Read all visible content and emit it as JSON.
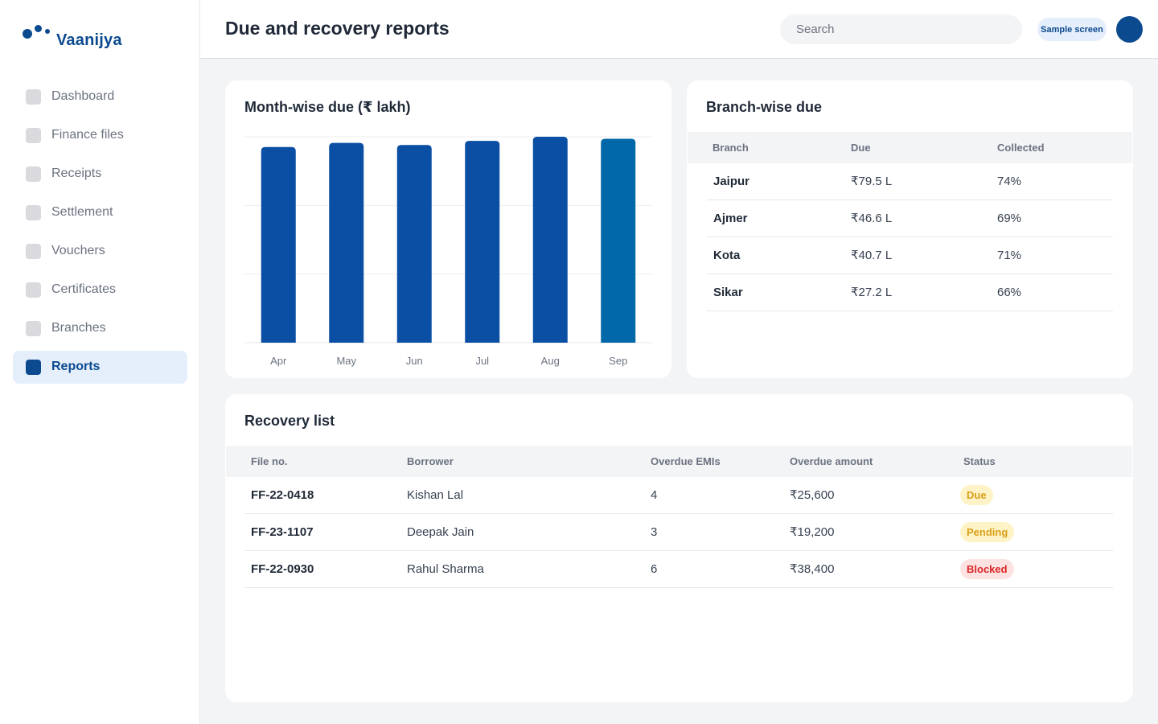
{
  "brand": {
    "name": "Vaanijya"
  },
  "sidebar": {
    "items": [
      {
        "label": "Dashboard",
        "active": false
      },
      {
        "label": "Finance files",
        "active": false
      },
      {
        "label": "Receipts",
        "active": false
      },
      {
        "label": "Settlement",
        "active": false
      },
      {
        "label": "Vouchers",
        "active": false
      },
      {
        "label": "Certificates",
        "active": false
      },
      {
        "label": "Branches",
        "active": false
      },
      {
        "label": "Reports",
        "active": true
      }
    ]
  },
  "header": {
    "title": "Due and recovery reports",
    "search_placeholder": "Search",
    "badge": "Sample screen"
  },
  "colors": {
    "primary": "#0b4a8f",
    "bar": "#0a4fa3",
    "bar_highlight": "#0068a8"
  },
  "month_chart": {
    "title": "Month-wise due (₹ lakh)"
  },
  "chart_data": {
    "type": "bar",
    "title": "Month-wise due (₹ lakh)",
    "categories": [
      "Apr",
      "May",
      "Jun",
      "Jul",
      "Aug",
      "Sep"
    ],
    "values": [
      95,
      97,
      96,
      98,
      100,
      99
    ],
    "highlight_index": 5,
    "ylim": [
      0,
      100
    ],
    "grid": true
  },
  "branch": {
    "title": "Branch-wise due",
    "columns": [
      "Branch",
      "Due",
      "Collected"
    ],
    "rows": [
      {
        "branch": "Jaipur",
        "due": "₹79.5 L",
        "collected": "74%"
      },
      {
        "branch": "Ajmer",
        "due": "₹46.6 L",
        "collected": "69%"
      },
      {
        "branch": "Kota",
        "due": "₹40.7 L",
        "collected": "71%"
      },
      {
        "branch": "Sikar",
        "due": "₹27.2 L",
        "collected": "66%"
      }
    ]
  },
  "recovery": {
    "title": "Recovery list",
    "columns": [
      "File no.",
      "Borrower",
      "Overdue EMIs",
      "Overdue amount",
      "Status"
    ],
    "rows": [
      {
        "file": "FF-22-0418",
        "borrower": "Kishan Lal",
        "emis": "4",
        "amount": "₹25,600",
        "status": "Due",
        "status_type": "due"
      },
      {
        "file": "FF-23-1107",
        "borrower": "Deepak Jain",
        "emis": "3",
        "amount": "₹19,200",
        "status": "Pending",
        "status_type": "pending"
      },
      {
        "file": "FF-22-0930",
        "borrower": "Rahul Sharma",
        "emis": "6",
        "amount": "₹38,400",
        "status": "Blocked",
        "status_type": "blocked"
      }
    ]
  }
}
